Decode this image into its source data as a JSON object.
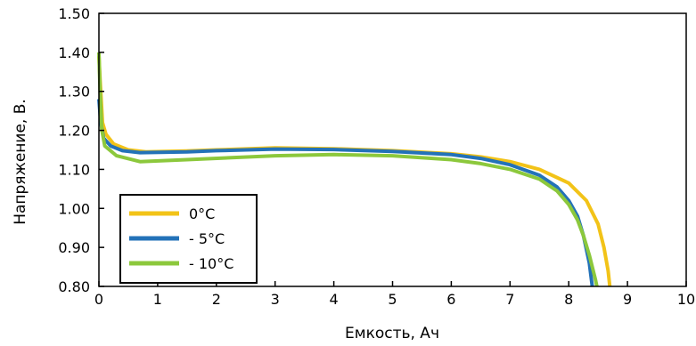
{
  "chart_data": {
    "type": "line",
    "title": "",
    "xlabel": "Емкость, Ач",
    "ylabel": "Напряжение, В.",
    "xlim": [
      0,
      10
    ],
    "ylim": [
      0.8,
      1.5
    ],
    "x_ticks": [
      "0",
      "1",
      "2",
      "3",
      "4",
      "5",
      "6",
      "7",
      "8",
      "9",
      "10"
    ],
    "y_ticks": [
      "0.80",
      "0.90",
      "1.00",
      "1.10",
      "1.20",
      "1.30",
      "1.40",
      "1.50"
    ],
    "grid": false,
    "legend_position": "bottom-left",
    "series": [
      {
        "name": "0°C",
        "color": "#f2c318",
        "points": [
          [
            0.0,
            1.39
          ],
          [
            0.02,
            1.33
          ],
          [
            0.06,
            1.22
          ],
          [
            0.12,
            1.19
          ],
          [
            0.25,
            1.165
          ],
          [
            0.5,
            1.15
          ],
          [
            0.8,
            1.145
          ],
          [
            1.5,
            1.147
          ],
          [
            2.0,
            1.15
          ],
          [
            3.0,
            1.155
          ],
          [
            4.0,
            1.153
          ],
          [
            5.0,
            1.148
          ],
          [
            6.0,
            1.14
          ],
          [
            6.5,
            1.132
          ],
          [
            7.0,
            1.12
          ],
          [
            7.5,
            1.1
          ],
          [
            8.0,
            1.065
          ],
          [
            8.3,
            1.02
          ],
          [
            8.5,
            0.96
          ],
          [
            8.6,
            0.9
          ],
          [
            8.67,
            0.84
          ],
          [
            8.7,
            0.8
          ]
        ]
      },
      {
        "name": "- 5°C",
        "color": "#2372b8",
        "points": [
          [
            0.0,
            1.28
          ],
          [
            0.03,
            1.22
          ],
          [
            0.08,
            1.18
          ],
          [
            0.2,
            1.16
          ],
          [
            0.4,
            1.148
          ],
          [
            0.7,
            1.143
          ],
          [
            1.5,
            1.145
          ],
          [
            2.0,
            1.148
          ],
          [
            3.0,
            1.152
          ],
          [
            4.0,
            1.151
          ],
          [
            5.0,
            1.146
          ],
          [
            6.0,
            1.138
          ],
          [
            6.5,
            1.128
          ],
          [
            7.0,
            1.112
          ],
          [
            7.5,
            1.085
          ],
          [
            7.8,
            1.055
          ],
          [
            8.0,
            1.02
          ],
          [
            8.15,
            0.98
          ],
          [
            8.25,
            0.93
          ],
          [
            8.35,
            0.86
          ],
          [
            8.4,
            0.8
          ]
        ]
      },
      {
        "name": "- 10°C",
        "color": "#8cc83c",
        "points": [
          [
            0.0,
            1.4
          ],
          [
            0.02,
            1.3
          ],
          [
            0.05,
            1.2
          ],
          [
            0.1,
            1.16
          ],
          [
            0.3,
            1.135
          ],
          [
            0.7,
            1.12
          ],
          [
            1.5,
            1.125
          ],
          [
            3.0,
            1.135
          ],
          [
            4.0,
            1.138
          ],
          [
            5.0,
            1.135
          ],
          [
            6.0,
            1.125
          ],
          [
            6.5,
            1.115
          ],
          [
            7.0,
            1.1
          ],
          [
            7.5,
            1.075
          ],
          [
            7.8,
            1.045
          ],
          [
            8.0,
            1.01
          ],
          [
            8.15,
            0.97
          ],
          [
            8.25,
            0.93
          ],
          [
            8.35,
            0.88
          ],
          [
            8.45,
            0.82
          ],
          [
            8.48,
            0.8
          ]
        ]
      }
    ]
  }
}
